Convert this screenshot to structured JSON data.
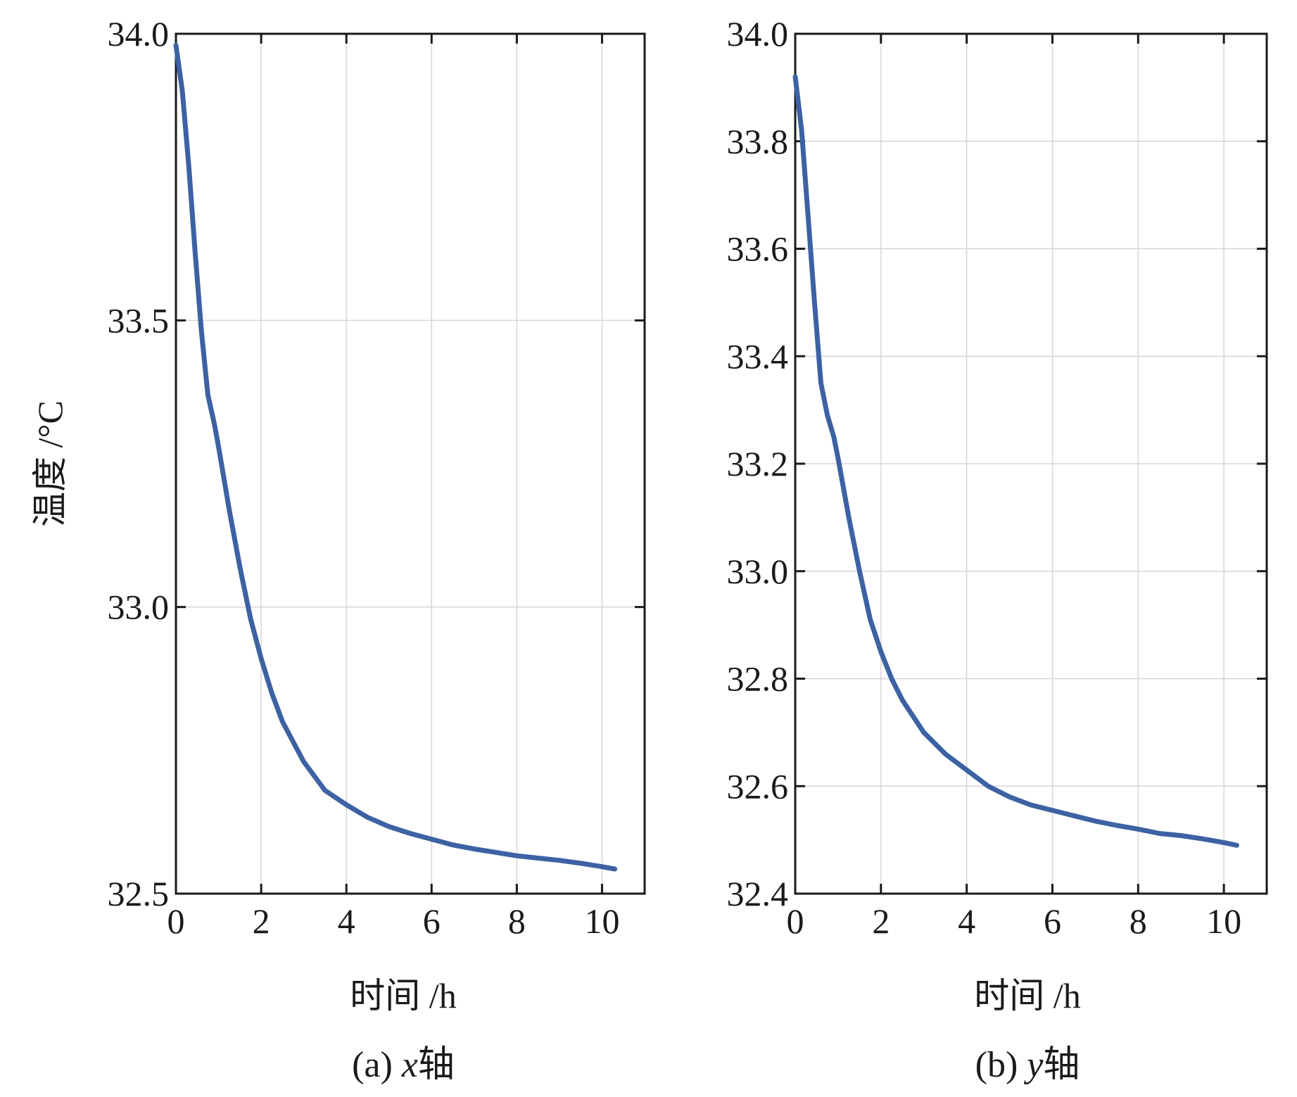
{
  "chart_data": [
    {
      "type": "line",
      "ylabel": "温度 /°C",
      "xlabel": "时间 /h",
      "caption_prefix": "(a)",
      "caption_var": "x",
      "caption_suffix": "轴",
      "xlim": [
        0,
        11
      ],
      "ylim": [
        32.5,
        34.0
      ],
      "xticks": [
        0,
        2,
        4,
        6,
        8,
        10
      ],
      "xtick_labels": [
        "0",
        "2",
        "4",
        "6",
        "8",
        "10"
      ],
      "yticks": [
        32.5,
        33.0,
        33.5,
        34.0
      ],
      "ytick_labels": [
        "32.5",
        "33.0",
        "33.5",
        "34.0"
      ],
      "grid": true,
      "series": [
        {
          "color": "#3d62a3",
          "x": [
            0,
            0.15,
            0.3,
            0.45,
            0.6,
            0.75,
            0.9,
            1.0,
            1.25,
            1.5,
            1.75,
            2.0,
            2.25,
            2.5,
            3.0,
            3.5,
            4.0,
            4.5,
            5.0,
            5.5,
            6.0,
            6.5,
            7.0,
            7.5,
            8.0,
            8.5,
            9.0,
            9.5,
            10.0,
            10.3
          ],
          "y": [
            33.98,
            33.9,
            33.77,
            33.62,
            33.48,
            33.37,
            33.32,
            33.28,
            33.17,
            33.07,
            32.98,
            32.91,
            32.85,
            32.8,
            32.73,
            32.68,
            32.655,
            32.633,
            32.617,
            32.605,
            32.595,
            32.585,
            32.578,
            32.572,
            32.566,
            32.562,
            32.558,
            32.553,
            32.547,
            32.543
          ]
        }
      ]
    },
    {
      "type": "line",
      "ylabel": "",
      "xlabel": "时间 /h",
      "caption_prefix": "(b)",
      "caption_var": "y",
      "caption_suffix": "轴",
      "xlim": [
        0,
        11
      ],
      "ylim": [
        32.4,
        34.0
      ],
      "xticks": [
        0,
        2,
        4,
        6,
        8,
        10
      ],
      "xtick_labels": [
        "0",
        "2",
        "4",
        "6",
        "8",
        "10"
      ],
      "yticks": [
        32.4,
        32.6,
        32.8,
        33.0,
        33.2,
        33.4,
        33.6,
        33.8,
        34.0
      ],
      "ytick_labels": [
        "32.4",
        "32.6",
        "32.8",
        "33.0",
        "33.2",
        "33.4",
        "33.6",
        "33.8",
        "34.0"
      ],
      "grid": true,
      "series": [
        {
          "color": "#3d62a3",
          "x": [
            0,
            0.15,
            0.3,
            0.45,
            0.6,
            0.75,
            0.9,
            1.0,
            1.25,
            1.5,
            1.75,
            2.0,
            2.25,
            2.5,
            3.0,
            3.5,
            4.0,
            4.5,
            5.0,
            5.5,
            6.0,
            6.5,
            7.0,
            7.5,
            8.0,
            8.5,
            9.0,
            9.5,
            10.0,
            10.3
          ],
          "y": [
            33.92,
            33.82,
            33.66,
            33.5,
            33.35,
            33.29,
            33.25,
            33.21,
            33.1,
            33.0,
            32.91,
            32.85,
            32.8,
            32.76,
            32.7,
            32.66,
            32.63,
            32.6,
            32.58,
            32.565,
            32.555,
            32.545,
            32.535,
            32.527,
            32.52,
            32.512,
            32.508,
            32.502,
            32.495,
            32.49
          ]
        }
      ]
    }
  ]
}
